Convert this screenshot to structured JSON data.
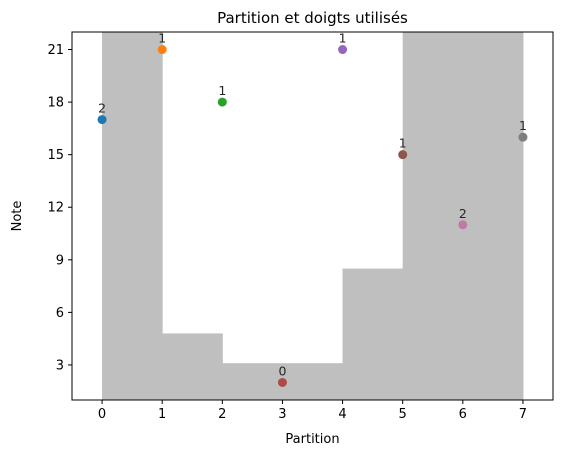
{
  "chart_data": {
    "type": "scatter",
    "title": "Partition et doigts utilisés",
    "xlabel": "Partition",
    "ylabel": "Note",
    "xlim": [
      -0.5,
      7.5
    ],
    "ylim": [
      1.0,
      22.0
    ],
    "xticks": [
      0,
      1,
      2,
      3,
      4,
      5,
      6,
      7
    ],
    "yticks": [
      3,
      6,
      9,
      12,
      15,
      18,
      21
    ],
    "grid": false,
    "background_steps": {
      "color": "#bfbfbf",
      "x": [
        0,
        1,
        2,
        3,
        4,
        5,
        6,
        7
      ],
      "top": [
        22.0,
        4.8,
        3.1,
        3.1,
        8.5,
        22.0,
        22.0
      ]
    },
    "points": [
      {
        "x": 0,
        "y": 17,
        "label": "2",
        "color": "#1f77b4"
      },
      {
        "x": 1,
        "y": 21,
        "label": "1",
        "color": "#ff7f0e"
      },
      {
        "x": 2,
        "y": 18,
        "label": "1",
        "color": "#2ca02c"
      },
      {
        "x": 3,
        "y": 2,
        "label": "0",
        "color": "#af4b47"
      },
      {
        "x": 4,
        "y": 21,
        "label": "1",
        "color": "#9467bd"
      },
      {
        "x": 5,
        "y": 15,
        "label": "1",
        "color": "#8c564b"
      },
      {
        "x": 6,
        "y": 11,
        "label": "2",
        "color": "#c07aa6"
      },
      {
        "x": 7,
        "y": 16,
        "label": "1",
        "color": "#7f7f7f"
      }
    ]
  }
}
